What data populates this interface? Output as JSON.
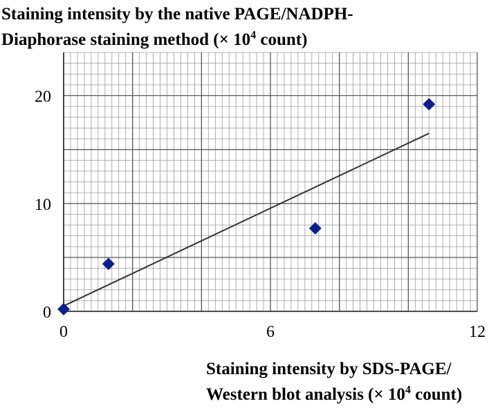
{
  "chart_data": {
    "type": "scatter",
    "ylabel": {
      "line1": "Staining intensity by the native PAGE/NADPH-",
      "line2_pre": "Diaphorase staining method (× 10",
      "sup": "4",
      "line2_post": " count)"
    },
    "xlabel": {
      "line1": "Staining intensity by SDS-PAGE/",
      "line2_pre": "Western blot analysis (× 10",
      "sup": "4",
      "line2_post": " count)"
    },
    "xlim": [
      0,
      12
    ],
    "ylim": [
      0,
      24
    ],
    "x_ticks": [
      "0",
      "6",
      "12"
    ],
    "y_ticks": [
      "0",
      "10",
      "20"
    ],
    "grid": true,
    "series": [
      {
        "marker": "diamond",
        "color": "#0b1f8c",
        "points": [
          {
            "x": 0.0,
            "y": 0.2
          },
          {
            "x": 1.3,
            "y": 4.4
          },
          {
            "x": 7.3,
            "y": 7.7
          },
          {
            "x": 10.6,
            "y": 19.2
          }
        ]
      }
    ],
    "trendline": {
      "color": "#333333",
      "from": {
        "x": 0.0,
        "y": 0.5
      },
      "to": {
        "x": 10.6,
        "y": 16.5
      }
    }
  }
}
